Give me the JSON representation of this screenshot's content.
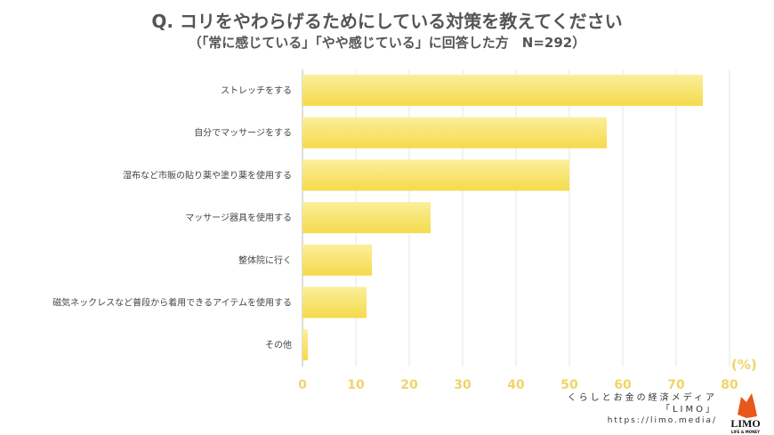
{
  "title": "Q. コリをやわらげるためにしている対策を教えてください",
  "subtitle": "（「常に感じている」「やや感じている」に回答した方　N=292）",
  "chart_data": {
    "type": "bar",
    "orientation": "horizontal",
    "title": "Q. コリをやわらげるためにしている対策を教えてください",
    "subtitle": "（「常に感じている」「やや感じている」に回答した方　N=292）",
    "categories": [
      "ストレッチをする",
      "自分でマッサージをする",
      "湿布など市販の貼り薬や塗り薬を使用する",
      "マッサージ器具を使用する",
      "整体院に行く",
      "磁気ネックレスなど普段から着用できるアイテムを使用する",
      "その他"
    ],
    "values": [
      75,
      57,
      50,
      24,
      13,
      12,
      1
    ],
    "xlim": [
      0,
      80
    ],
    "ticks": [
      0,
      10,
      20,
      30,
      40,
      50,
      60,
      70,
      80
    ],
    "unit": "(%)",
    "grid": true,
    "bar_color": "#f7df5a",
    "tick_color": "#f0d468"
  },
  "credit": {
    "line1": "くらしとお金の経済メディア",
    "line2": "「LIMO」",
    "url": "https://limo.media/"
  },
  "logo": {
    "text": "LIMO",
    "sub": "LIFE & MONEY",
    "color": "#e8581c"
  }
}
